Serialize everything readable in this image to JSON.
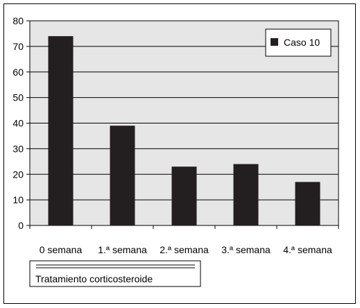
{
  "chart_data": {
    "type": "bar",
    "categories": [
      "0 semana",
      "1.ª semana",
      "2.ª semana",
      "3.ª semana",
      "4.ª semana"
    ],
    "series": [
      {
        "name": "Caso 10",
        "values": [
          74,
          39,
          23,
          24,
          17
        ]
      }
    ],
    "ylim": [
      0,
      80
    ],
    "yticks": [
      0,
      10,
      20,
      30,
      40,
      50,
      60,
      70,
      80
    ],
    "grid": true,
    "legend": "top-right",
    "xaxis_caption": "Tratamiento corticosteroide",
    "colors": {
      "bar": "#231f20",
      "plot_background": "#e6e6e6",
      "grid": "#000000"
    }
  }
}
